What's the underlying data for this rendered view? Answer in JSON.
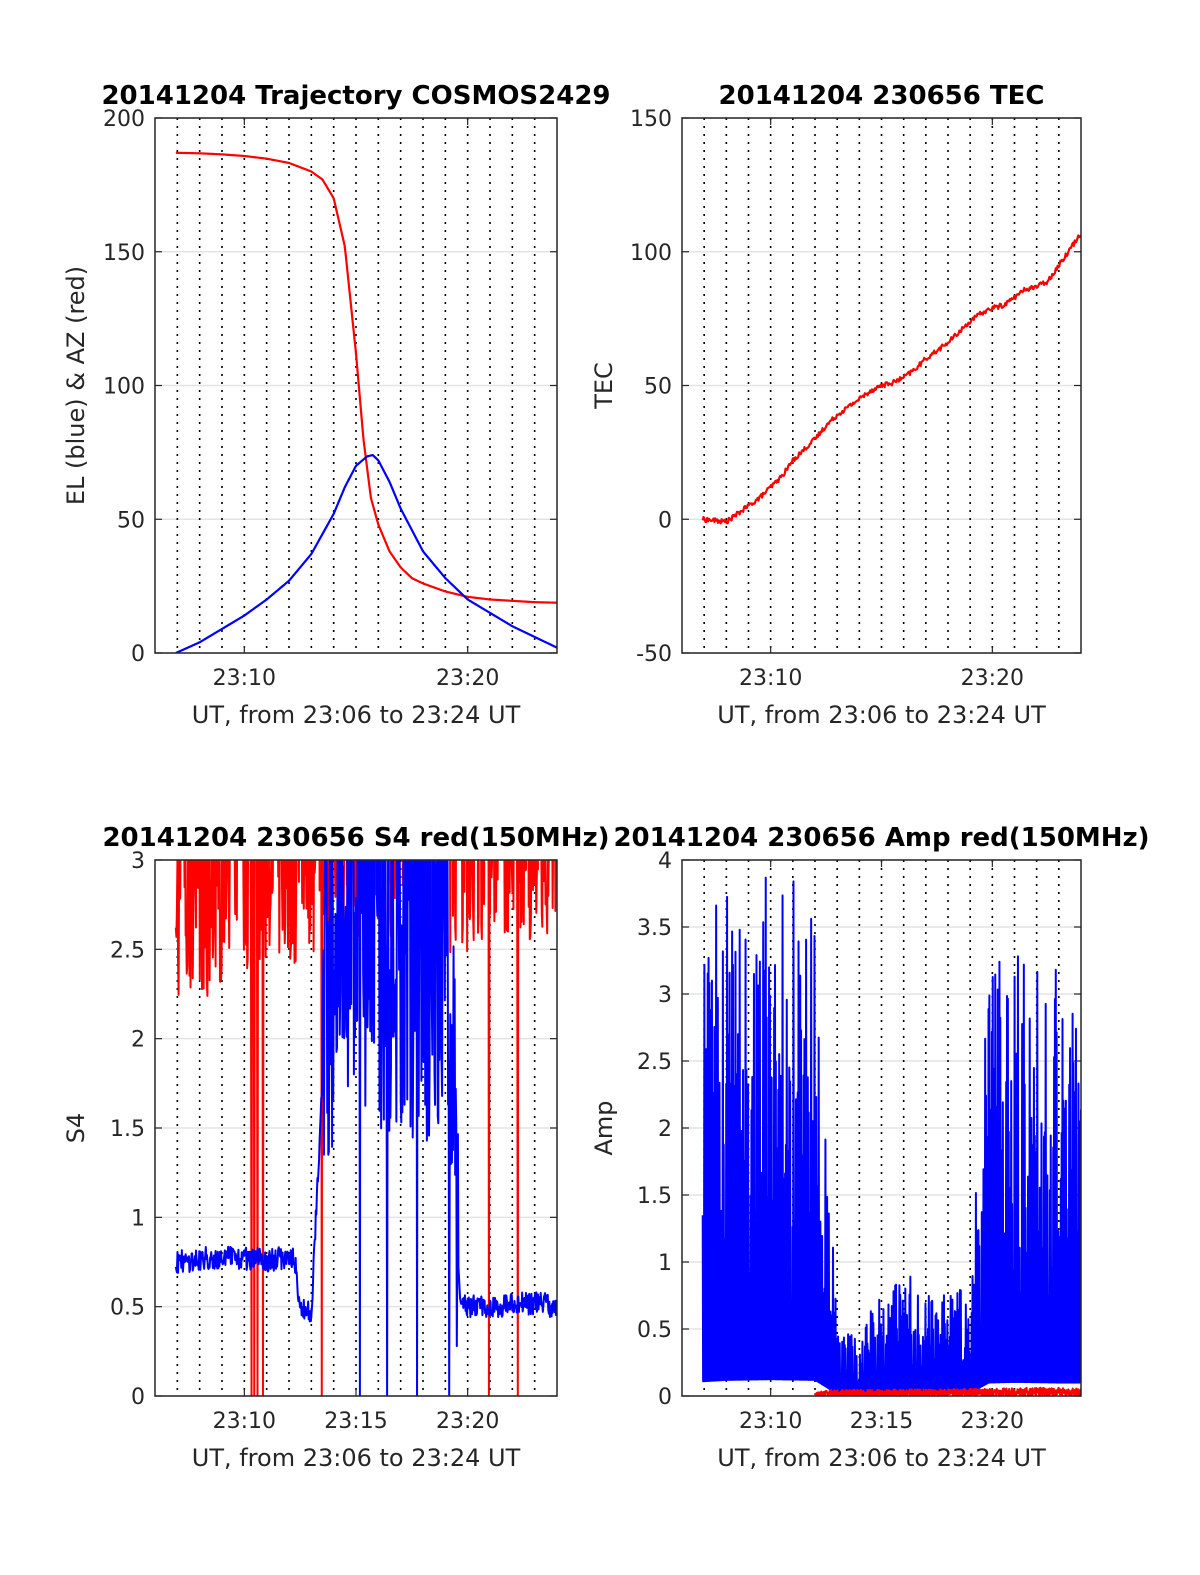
{
  "chart_data": [
    {
      "type": "line",
      "title": "20141204 Trajectory COSMOS2429",
      "xlabel": "UT, from 23:06 to 23:24 UT",
      "ylabel": "EL (blue) & AZ (red)",
      "xlim": [
        "23:06:00",
        "23:24:00"
      ],
      "ylim": [
        0,
        200
      ],
      "xticks": [
        "23:10",
        "23:20"
      ],
      "yticks": [
        "0",
        "50",
        "100",
        "150",
        "200"
      ],
      "grid": "dotted vertical lines every 1 min; light horizontal gridlines",
      "series": [
        {
          "color": "#ff0000",
          "x": [
            "23:06:56",
            "23:08:00",
            "23:09:00",
            "23:10:00",
            "23:11:00",
            "23:12:00",
            "23:13:00",
            "23:13:30",
            "23:14:00",
            "23:14:30",
            "23:15:00",
            "23:15:20",
            "23:15:40",
            "23:16:00",
            "23:16:30",
            "23:17:00",
            "23:17:30",
            "23:18:00",
            "23:19:00",
            "23:20:00",
            "23:21:00",
            "23:22:00",
            "23:23:00",
            "23:24:00"
          ],
          "values": [
            187,
            186.8,
            186.4,
            185.8,
            184.8,
            183.2,
            180,
            177,
            170,
            152,
            112,
            80,
            58,
            48,
            38,
            32,
            28,
            26,
            23,
            21,
            20,
            19.5,
            19,
            18.8
          ]
        },
        {
          "color": "#0000ff",
          "x": [
            "23:06:56",
            "23:08:00",
            "23:09:00",
            "23:10:00",
            "23:11:00",
            "23:12:00",
            "23:13:00",
            "23:14:00",
            "23:14:30",
            "23:15:00",
            "23:15:30",
            "23:15:45",
            "23:16:00",
            "23:16:30",
            "23:17:00",
            "23:18:00",
            "23:19:00",
            "23:20:00",
            "23:21:00",
            "23:22:00",
            "23:23:00",
            "23:24:00"
          ],
          "values": [
            0,
            4,
            9,
            14,
            20,
            27,
            37,
            52,
            62,
            70,
            73.5,
            74,
            72,
            64,
            54,
            38,
            28,
            20,
            15,
            10,
            6,
            2
          ]
        }
      ]
    },
    {
      "type": "line",
      "title": "20141204 230656 TEC",
      "xlabel": "UT, from 23:06 to 23:24 UT",
      "ylabel": "TEC",
      "xlim": [
        "23:06:00",
        "23:24:00"
      ],
      "ylim": [
        -50,
        150
      ],
      "xticks": [
        "23:10",
        "23:20"
      ],
      "yticks": [
        "-50",
        "0",
        "50",
        "100",
        "150"
      ],
      "grid": "dotted vertical lines every 1 min; light horizontal gridlines",
      "series": [
        {
          "color": "#ff0000",
          "x": [
            "23:06:56",
            "23:07:30",
            "23:08:00",
            "23:08:30",
            "23:09:00",
            "23:09:30",
            "23:10:00",
            "23:10:30",
            "23:11:00",
            "23:11:30",
            "23:12:00",
            "23:12:30",
            "23:13:00",
            "23:13:30",
            "23:14:00",
            "23:14:30",
            "23:15:00",
            "23:15:30",
            "23:16:00",
            "23:16:30",
            "23:17:00",
            "23:17:30",
            "23:18:00",
            "23:18:30",
            "23:19:00",
            "23:19:30",
            "23:20:00",
            "23:20:30",
            "23:21:00",
            "23:21:30",
            "23:22:00",
            "23:22:30",
            "23:23:00",
            "23:23:30",
            "23:24:00"
          ],
          "values": [
            0,
            -0.5,
            -1,
            2,
            5,
            8,
            12,
            16,
            22,
            26,
            30,
            35,
            39,
            42,
            45,
            48,
            50,
            51,
            53,
            56,
            60,
            63,
            66,
            70,
            74,
            77,
            79,
            80,
            83,
            86,
            87,
            89,
            95,
            101,
            107
          ]
        }
      ]
    },
    {
      "type": "line",
      "title": "20141204 230656 S4 red(150MHz)",
      "xlabel": "UT, from 23:06 to 23:24 UT",
      "ylabel": "S4",
      "xlim": [
        "23:06:00",
        "23:24:00"
      ],
      "ylim": [
        0,
        3
      ],
      "xticks": [
        "23:10",
        "23:15",
        "23:20"
      ],
      "yticks": [
        "0",
        "0.5",
        "1",
        "1.5",
        "2",
        "2.5",
        "3"
      ],
      "grid": "dotted vertical lines every 1 min; light horizontal gridlines",
      "series": [
        {
          "color": "#ff0000",
          "x": [
            "23:06:56",
            "23:09:00",
            "23:11:00",
            "23:13:00",
            "23:15:00",
            "23:17:00",
            "23:19:00",
            "23:21:00",
            "23:23:00",
            "23:24:00"
          ],
          "values": [
            2.4,
            2.5,
            2.6,
            2.7,
            2.8,
            2.8,
            2.7,
            2.75,
            2.8,
            2.8
          ]
        },
        {
          "color": "#0000ff",
          "x": [
            "23:06:56",
            "23:09:00",
            "23:11:00",
            "23:12:15",
            "23:12:30",
            "23:13:00",
            "23:13:30",
            "23:15:00",
            "23:17:00",
            "23:19:00",
            "23:19:40",
            "23:21:00",
            "23:23:00",
            "23:24:00"
          ],
          "values": [
            0.75,
            0.78,
            0.76,
            0.78,
            0.48,
            0.46,
            1.8,
            2.3,
            2.0,
            2.1,
            0.5,
            0.5,
            0.52,
            0.5
          ]
        }
      ]
    },
    {
      "type": "line",
      "title": "20141204 230656 Amp red(150MHz)",
      "xlabel": "UT, from 23:06 to 23:24 UT",
      "ylabel": "Amp",
      "xlim": [
        "23:06:00",
        "23:24:00"
      ],
      "ylim": [
        0,
        4
      ],
      "xticks": [
        "23:10",
        "23:15",
        "23:20"
      ],
      "yticks": [
        "0",
        "0.5",
        "1",
        "1.5",
        "2",
        "2.5",
        "3",
        "3.5",
        "4"
      ],
      "grid": "dotted vertical lines every 1 min; light horizontal gridlines",
      "series": [
        {
          "color": "#0000ff",
          "x": [
            "23:06:56",
            "23:08:00",
            "23:10:00",
            "23:12:00",
            "23:12:30",
            "23:13:00",
            "23:14:00",
            "23:15:00",
            "23:16:00",
            "23:17:00",
            "23:18:00",
            "23:19:00",
            "23:19:50",
            "23:21:00",
            "23:23:00",
            "23:24:00"
          ],
          "values": [
            2.2,
            2.4,
            2.5,
            2.4,
            1.4,
            0.3,
            0.3,
            0.5,
            0.6,
            0.5,
            0.5,
            0.5,
            2.0,
            2.1,
            2.0,
            2.0
          ]
        },
        {
          "color": "#ff0000",
          "x": [
            "23:12:00",
            "23:12:30",
            "23:20:00",
            "23:22:00",
            "23:24:00"
          ],
          "values": [
            0.02,
            0.04,
            0.05,
            0.06,
            0.05
          ]
        }
      ]
    }
  ]
}
